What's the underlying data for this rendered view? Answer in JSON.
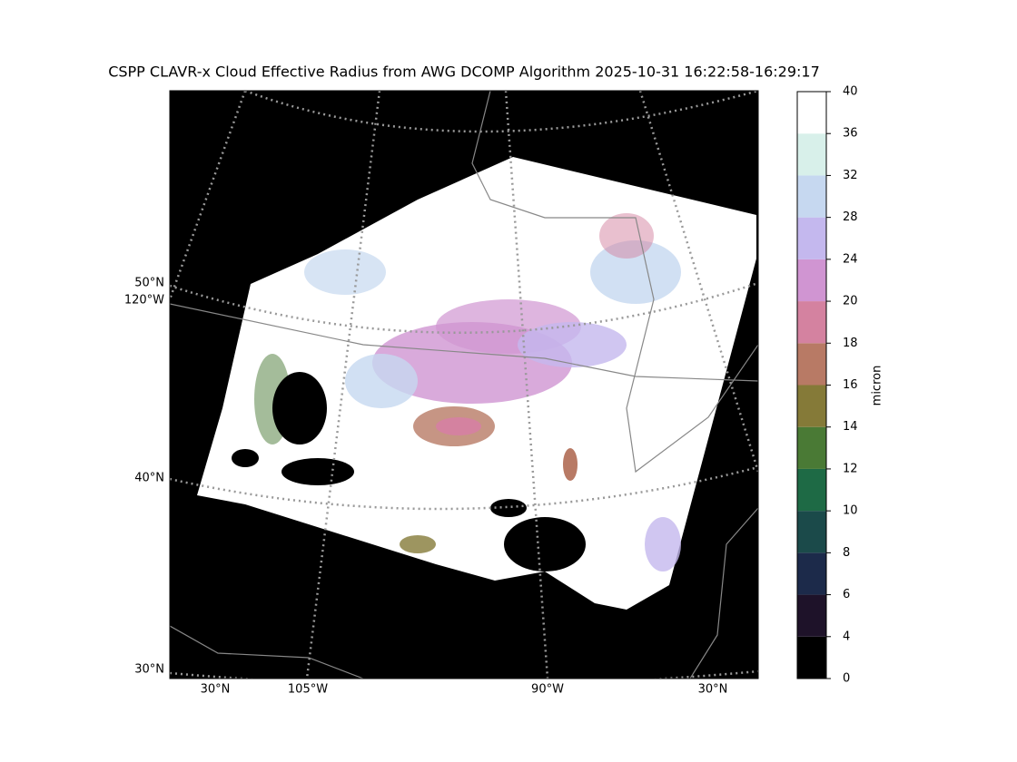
{
  "title": "CSPP CLAVR-x Cloud Effective Radius from AWG DCOMP Algorithm 2025-10-31 16:22:58-16:29:17",
  "map": {
    "left_labels": [
      "50°N",
      "120°W",
      "40°N",
      "30°N"
    ],
    "bottom_labels": [
      "30°N",
      "105°W",
      "90°W",
      "30°N"
    ]
  },
  "colorbar": {
    "label": "micron",
    "ticks": [
      0,
      4,
      6,
      8,
      10,
      12,
      14,
      16,
      18,
      20,
      24,
      28,
      32,
      36,
      40
    ],
    "colors": [
      "#000000",
      "#1e1229",
      "#1c2a4a",
      "#1b4a4a",
      "#1e6a45",
      "#4a7a35",
      "#857a38",
      "#b87a65",
      "#d482a0",
      "#d095d2",
      "#c4b8ee",
      "#c6d8f0",
      "#d8f0ea",
      "#ffffff"
    ]
  }
}
